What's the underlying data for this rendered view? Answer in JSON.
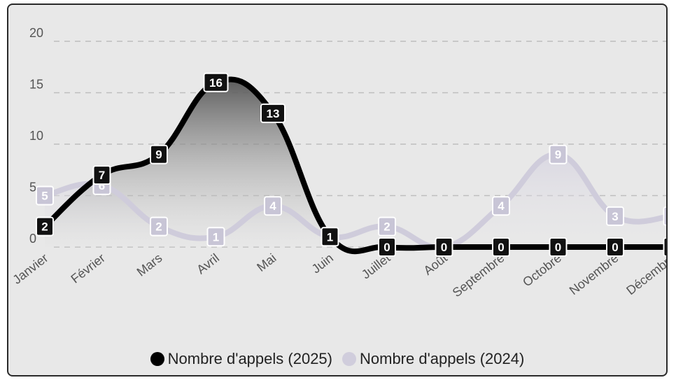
{
  "chart_data": {
    "type": "area",
    "categories": [
      "Janvier",
      "Février",
      "Mars",
      "Avril",
      "Mai",
      "Juin",
      "Juillet",
      "Août",
      "Septembre",
      "Octobre",
      "Novembre",
      "Décembre"
    ],
    "series": [
      {
        "name": "Nombre d'appels (2025)",
        "values": [
          2,
          7,
          9,
          16,
          13,
          1,
          0,
          0,
          0,
          0,
          0,
          0
        ],
        "color": "#000000"
      },
      {
        "name": "Nombre d'appels (2024)",
        "values": [
          5,
          6,
          2,
          1,
          4,
          1,
          2,
          0,
          4,
          9,
          3,
          3
        ],
        "color": "#cfccdb"
      }
    ],
    "yticks": [
      "0",
      "5",
      "10",
      "15",
      "20"
    ],
    "ylim": [
      0,
      20
    ],
    "grid": true,
    "legend_position": "bottom"
  },
  "legend": {
    "items": [
      {
        "label": "Nombre d'appels (2025)",
        "color": "#000000"
      },
      {
        "label": "Nombre d'appels (2024)",
        "color": "#d0cddc"
      }
    ]
  }
}
